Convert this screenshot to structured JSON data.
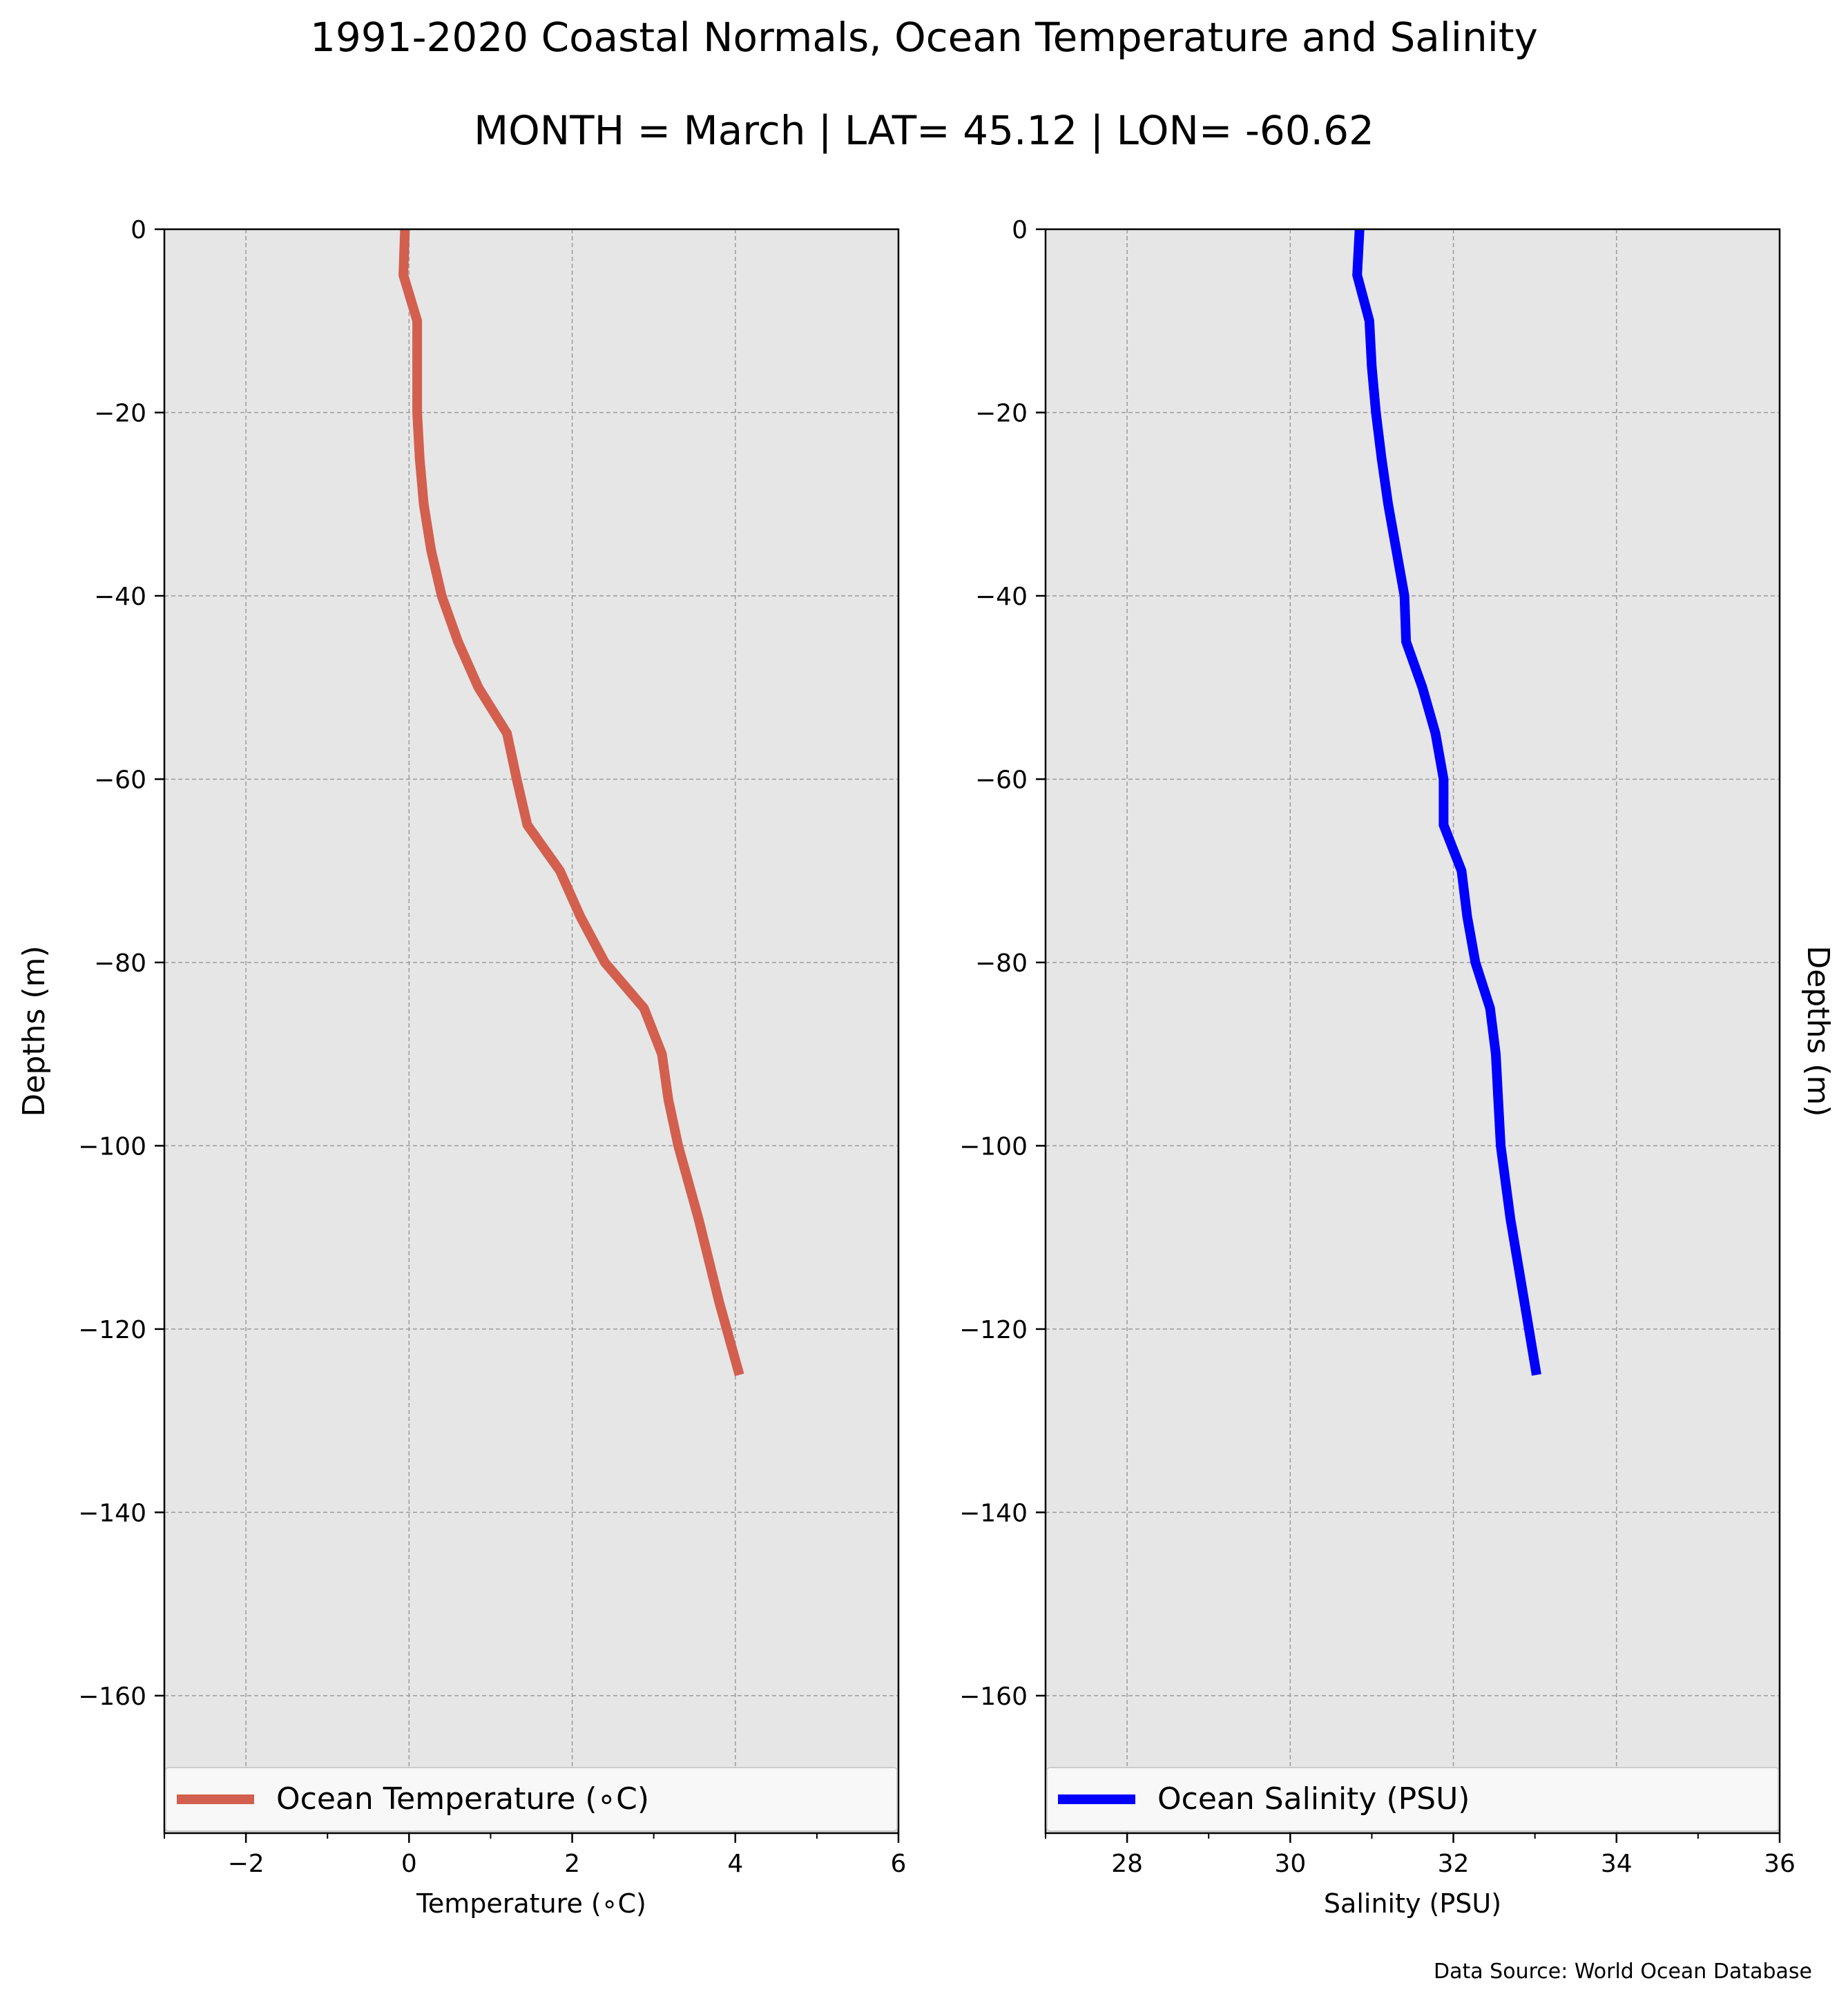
{
  "figure": {
    "title": "1991-2020 Coastal Normals, Ocean Temperature and Salinity",
    "subtitle": "MONTH = March | LAT= 45.12 | LON= -60.62",
    "source_note": "Data Source: World Ocean Database"
  },
  "chart_data": [
    {
      "type": "line",
      "series": [
        {
          "name": "Ocean Temperature (∘C)",
          "color": "#d35f4e",
          "x": [
            -0.05,
            -0.07,
            0.1,
            0.1,
            0.1,
            0.13,
            0.18,
            0.27,
            0.4,
            0.6,
            0.85,
            1.2,
            1.32,
            1.45,
            1.85,
            2.1,
            2.4,
            2.88,
            3.1,
            3.18,
            3.3,
            3.55,
            3.8,
            4.05
          ],
          "y": [
            0,
            -5,
            -10,
            -15,
            -20,
            -25,
            -30,
            -35,
            -40,
            -45,
            -50,
            -55,
            -60,
            -65,
            -70,
            -75,
            -80,
            -85,
            -90,
            -95,
            -100,
            -108,
            -117,
            -125
          ]
        }
      ],
      "xlabel": "Temperature (∘C)",
      "ylabel": "Depths (m)",
      "xlim": [
        -3,
        6
      ],
      "ylim": [
        -175,
        0
      ],
      "xticks": [
        -2,
        0,
        2,
        4,
        6
      ],
      "xtick_labels": [
        "−2",
        "0",
        "2",
        "4",
        "6"
      ],
      "yticks": [
        0,
        -20,
        -40,
        -60,
        -80,
        -100,
        -120,
        -140,
        -160
      ],
      "ytick_labels": [
        "0",
        "−20",
        "−40",
        "−60",
        "−80",
        "−100",
        "−120",
        "−140",
        "−160"
      ],
      "grid": true,
      "legend": "bottom",
      "ylabel_side": "left"
    },
    {
      "type": "line",
      "series": [
        {
          "name": "Ocean Salinity (PSU)",
          "color": "#0000ff",
          "x": [
            30.85,
            30.82,
            30.97,
            31.0,
            31.05,
            31.12,
            31.2,
            31.3,
            31.4,
            31.42,
            31.62,
            31.78,
            31.88,
            31.88,
            32.1,
            32.17,
            32.27,
            32.45,
            32.52,
            32.55,
            32.58,
            32.7,
            32.87,
            33.02
          ],
          "y": [
            0,
            -5,
            -10,
            -15,
            -20,
            -25,
            -30,
            -35,
            -40,
            -45,
            -50,
            -55,
            -60,
            -65,
            -70,
            -75,
            -80,
            -85,
            -90,
            -95,
            -100,
            -108,
            -117,
            -125
          ]
        }
      ],
      "xlabel": "Salinity (PSU)",
      "ylabel": "Depths (m)",
      "xlim": [
        27,
        36
      ],
      "ylim": [
        -175,
        0
      ],
      "xticks": [
        28,
        30,
        32,
        34,
        36
      ],
      "xtick_labels": [
        "28",
        "30",
        "32",
        "34",
        "36"
      ],
      "yticks": [
        0,
        -20,
        -40,
        -60,
        -80,
        -100,
        -120,
        -140,
        -160
      ],
      "ytick_labels": [
        "0",
        "−20",
        "−40",
        "−60",
        "−80",
        "−100",
        "−120",
        "−140",
        "−160"
      ],
      "grid": true,
      "legend": "bottom",
      "ylabel_side": "right"
    }
  ]
}
